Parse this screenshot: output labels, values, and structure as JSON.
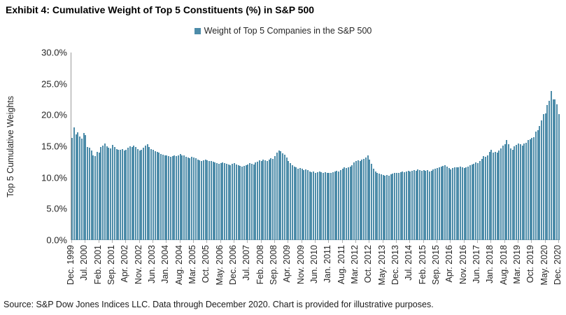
{
  "title": "Exhibit 4: Cumulative Weight of Top 5 Constituents (%) in S&P 500",
  "legend": {
    "label": "Weight of Top 5 Companies in the S&P 500",
    "marker_color": "#4d8ca9"
  },
  "footer": {
    "text": "Source: S&P Dow Jones Indices LLC. Data through December 2020. Chart is provided for illustrative purposes."
  },
  "chart_data": {
    "type": "bar",
    "title": "Exhibit 4: Cumulative Weight of Top 5 Constituents (%) in S&P 500",
    "xlabel": "",
    "ylabel": "Top 5 Cumulative Weights",
    "ylim": [
      0,
      30
    ],
    "ytick_step": 5,
    "ytick_labels": [
      "0.0%",
      "5.0%",
      "10.0%",
      "15.0%",
      "20.0%",
      "25.0%",
      "30.0%"
    ],
    "grid": false,
    "legend_position": "top-center",
    "bar_color": "#4d8ca9",
    "x_frequency": "monthly",
    "x_start": "Dec. 1999",
    "x_end": "Dec. 2020",
    "xtick_every": 7,
    "xtick_labels": [
      "Dec. 1999",
      "Jul. 2000",
      "Feb. 2001",
      "Sep. 2001",
      "Apr. 2002",
      "Nov. 2002",
      "Jun. 2003",
      "Jan. 2004",
      "Aug. 2004",
      "Mar. 2005",
      "Oct. 2005",
      "May. 2006",
      "Dec. 2006",
      "Jul. 2007",
      "Feb. 2008",
      "Sep. 2008",
      "Apr. 2009",
      "Nov. 2009",
      "Jun. 2010",
      "Jan. 2011",
      "Aug. 2011",
      "Mar. 2012",
      "Oct. 2012",
      "May. 2013",
      "Dec. 2013",
      "Jul. 2014",
      "Feb. 2015",
      "Sep. 2015",
      "Apr. 2016",
      "Nov. 2016",
      "Jun. 2017",
      "Jan. 2018",
      "Aug. 2018",
      "Mar. 2019",
      "Oct. 2019",
      "May. 2020",
      "Dec. 2020"
    ],
    "series": [
      {
        "name": "Weight of Top 5 Companies in the S&P 500",
        "values": [
          16.4,
          18.0,
          16.9,
          17.2,
          16.6,
          16.2,
          17.1,
          16.8,
          14.9,
          14.8,
          14.3,
          13.6,
          13.4,
          14.1,
          14.0,
          14.9,
          15.1,
          15.5,
          15.0,
          14.8,
          14.7,
          15.2,
          14.9,
          14.6,
          14.5,
          14.4,
          14.6,
          14.3,
          14.5,
          14.8,
          15.0,
          14.9,
          15.1,
          14.9,
          14.6,
          14.3,
          14.5,
          14.8,
          15.1,
          15.3,
          14.9,
          14.6,
          14.4,
          14.2,
          14.1,
          14.0,
          13.8,
          13.7,
          13.6,
          13.5,
          13.4,
          13.3,
          13.4,
          13.5,
          13.4,
          13.6,
          13.8,
          13.6,
          13.5,
          13.3,
          13.2,
          13.1,
          13.3,
          13.2,
          13.1,
          12.9,
          12.8,
          12.7,
          12.8,
          12.9,
          12.8,
          12.7,
          12.6,
          12.5,
          12.4,
          12.3,
          12.2,
          12.3,
          12.4,
          12.3,
          12.2,
          12.1,
          12.0,
          12.2,
          12.3,
          12.1,
          12.0,
          11.9,
          11.8,
          11.9,
          12.0,
          12.1,
          12.3,
          12.2,
          12.1,
          12.4,
          12.5,
          12.8,
          12.7,
          12.9,
          12.8,
          12.6,
          12.9,
          13.1,
          13.0,
          13.4,
          14.0,
          14.3,
          14.2,
          13.9,
          13.7,
          13.2,
          12.7,
          12.3,
          12.0,
          11.8,
          11.6,
          11.4,
          11.5,
          11.4,
          11.2,
          11.3,
          11.2,
          11.0,
          10.9,
          11.0,
          10.8,
          10.9,
          11.0,
          10.9,
          10.8,
          10.9,
          10.7,
          10.8,
          10.7,
          10.9,
          11.0,
          11.1,
          11.0,
          11.2,
          11.4,
          11.6,
          11.5,
          11.7,
          11.8,
          12.0,
          12.4,
          12.6,
          12.8,
          12.7,
          12.9,
          13.0,
          13.2,
          13.5,
          12.9,
          12.2,
          11.4,
          11.0,
          10.8,
          10.6,
          10.5,
          10.4,
          10.3,
          10.4,
          10.3,
          10.5,
          10.6,
          10.7,
          10.7,
          10.8,
          10.9,
          11.0,
          10.9,
          11.0,
          11.1,
          11.0,
          11.1,
          11.2,
          11.1,
          11.3,
          11.2,
          11.1,
          11.2,
          11.1,
          11.2,
          11.0,
          11.1,
          11.3,
          11.4,
          11.5,
          11.7,
          11.8,
          11.9,
          12.0,
          11.8,
          11.5,
          11.3,
          11.5,
          11.6,
          11.7,
          11.6,
          11.8,
          11.7,
          11.5,
          11.6,
          11.8,
          12.0,
          12.1,
          12.2,
          12.4,
          12.3,
          12.6,
          13.0,
          13.4,
          13.3,
          13.6,
          14.1,
          14.4,
          14.0,
          14.1,
          14.0,
          14.3,
          14.7,
          15.1,
          15.3,
          16.0,
          15.3,
          14.7,
          14.4,
          15.0,
          15.2,
          15.4,
          15.3,
          15.1,
          15.4,
          15.6,
          16.0,
          16.1,
          16.3,
          16.5,
          17.4,
          17.6,
          18.2,
          19.1,
          20.1,
          20.3,
          21.6,
          22.3,
          23.9,
          22.5,
          22.5,
          21.7,
          20.1
        ]
      }
    ]
  }
}
